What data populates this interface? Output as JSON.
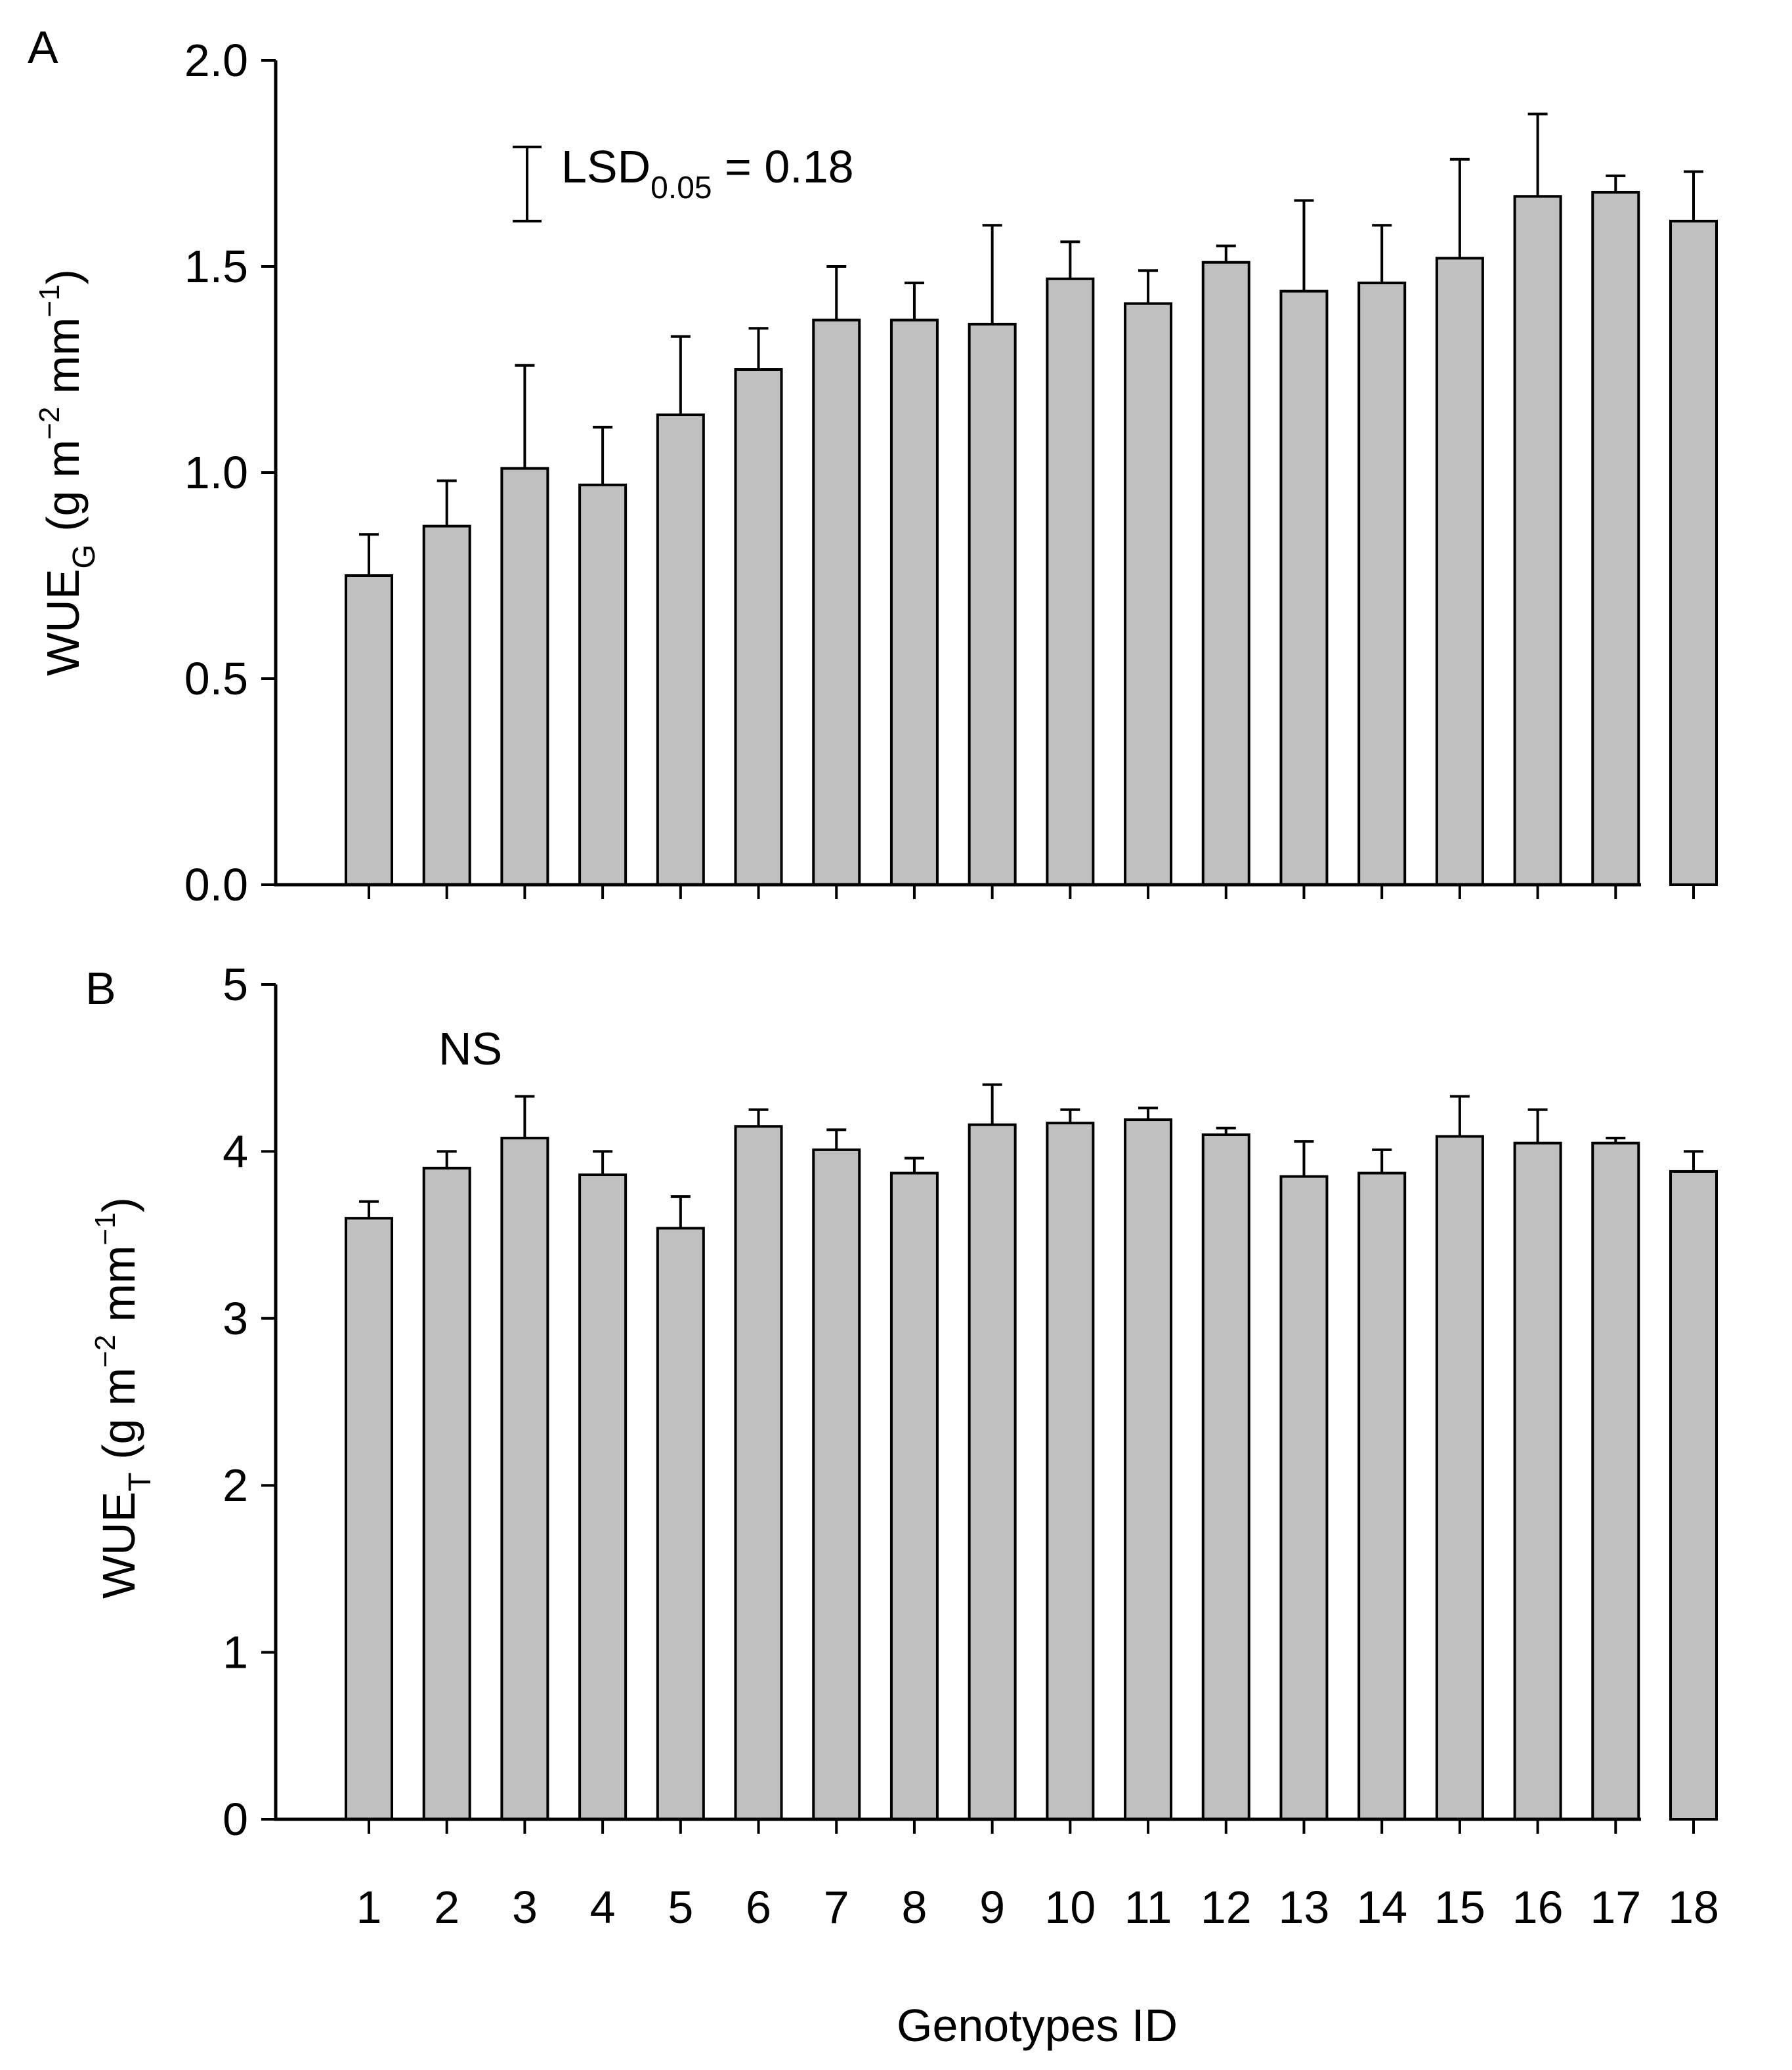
{
  "chart_data": [
    {
      "panel": "A",
      "type": "bar",
      "categories": [
        "1",
        "2",
        "3",
        "4",
        "5",
        "6",
        "7",
        "8",
        "9",
        "10",
        "11",
        "12",
        "13",
        "14",
        "15",
        "16",
        "17",
        "18"
      ],
      "values": [
        0.75,
        0.87,
        1.01,
        0.97,
        1.14,
        1.25,
        1.37,
        1.37,
        1.36,
        1.47,
        1.41,
        1.51,
        1.44,
        1.46,
        1.52,
        1.67,
        1.68,
        1.61
      ],
      "errors": [
        0.1,
        0.11,
        0.25,
        0.14,
        0.19,
        0.1,
        0.13,
        0.09,
        0.24,
        0.09,
        0.08,
        0.04,
        0.22,
        0.14,
        0.24,
        0.2,
        0.04,
        0.12
      ],
      "ylabel": {
        "main": "WUE",
        "sub": "G",
        "unit_open": " (g m",
        "exp1": "−2",
        "unit_mid": " mm",
        "exp2": "−1",
        "unit_close": ")"
      },
      "ylim": [
        0,
        2.0
      ],
      "yticks": [
        "0.0",
        "0.5",
        "1.0",
        "1.5",
        "2.0"
      ],
      "annotation": {
        "main": "LSD",
        "sub": "0.05",
        "rest": " = 0.18",
        "lsd_value": 0.18,
        "lsd_center": 1.7
      }
    },
    {
      "panel": "B",
      "type": "bar",
      "categories": [
        "1",
        "2",
        "3",
        "4",
        "5",
        "6",
        "7",
        "8",
        "9",
        "10",
        "11",
        "12",
        "13",
        "14",
        "15",
        "16",
        "17",
        "18"
      ],
      "values": [
        3.6,
        3.9,
        4.08,
        3.86,
        3.54,
        4.15,
        4.01,
        3.87,
        4.16,
        4.17,
        4.19,
        4.1,
        3.85,
        3.87,
        4.09,
        4.05,
        4.05,
        3.88
      ],
      "errors": [
        0.1,
        0.1,
        0.25,
        0.14,
        0.19,
        0.1,
        0.12,
        0.09,
        0.24,
        0.08,
        0.07,
        0.04,
        0.21,
        0.14,
        0.24,
        0.2,
        0.03,
        0.12
      ],
      "ylabel": {
        "main": "WUE",
        "sub": "T",
        "unit_open": " (g m",
        "exp1": "−2",
        "unit_mid": " mm",
        "exp2": "−1",
        "unit_close": ")"
      },
      "ylim": [
        0,
        5
      ],
      "yticks": [
        "0",
        "1",
        "2",
        "3",
        "4",
        "5"
      ],
      "annotation": {
        "text": "NS"
      }
    }
  ],
  "xlabel": "Genotypes ID"
}
